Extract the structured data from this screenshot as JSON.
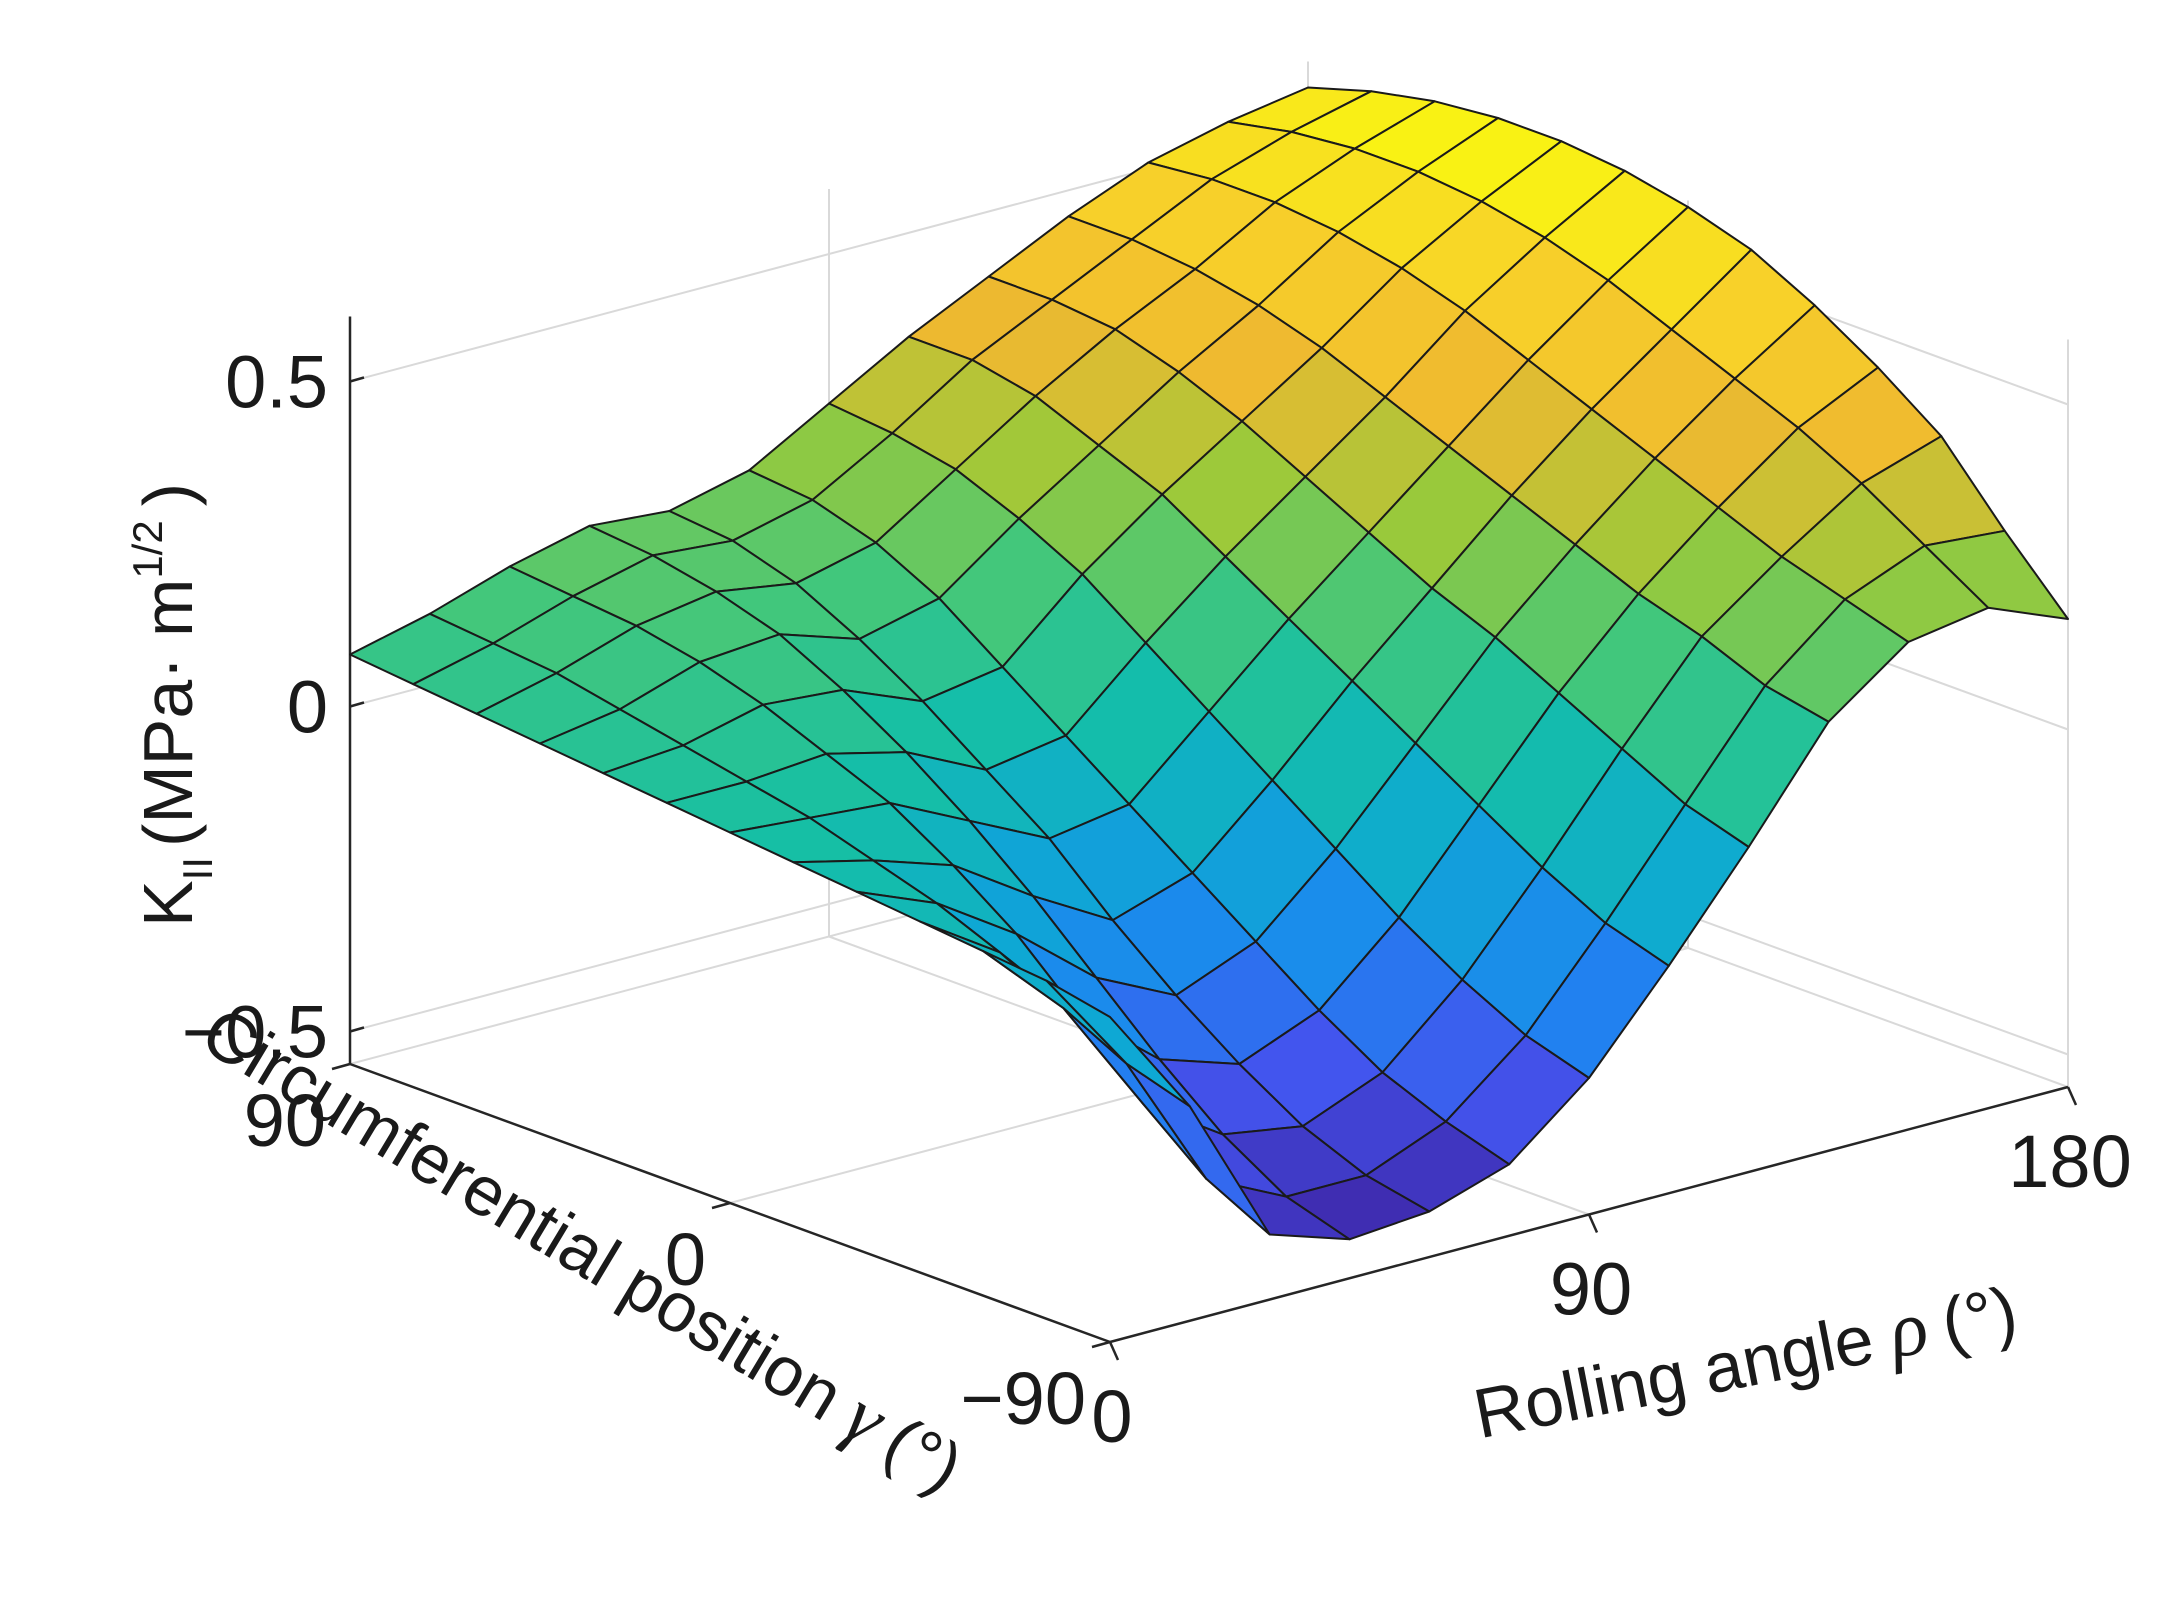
{
  "chart_data": {
    "type": "surface",
    "title": "",
    "xlabel": {
      "text": "Rolling angle",
      "symbol": "ρ",
      "unit": "(°)"
    },
    "ylabel": {
      "text": "Circumferential position",
      "symbol": "γ",
      "unit": "(°)"
    },
    "zlabel": {
      "base": "K",
      "subscript": "II",
      "units_open": "(MPa· m",
      "superscript": "1/2",
      "units_close": ")"
    },
    "x_ticks": [
      "0",
      "90",
      "180"
    ],
    "y_ticks": [
      "90",
      "0",
      "−90"
    ],
    "z_ticks": [
      "0.5",
      "0",
      "−0.5"
    ],
    "x_range": [
      0,
      180
    ],
    "y_range": [
      -90,
      90
    ],
    "z_range": [
      -0.55,
      0.6
    ],
    "colormap": [
      "#3e26a8",
      "#4354ee",
      "#1d86f0",
      "#0ea9d3",
      "#15bfa6",
      "#44c77a",
      "#9bc93a",
      "#efb930",
      "#f8d229",
      "#f9fb0e"
    ],
    "grid": true,
    "mesh": {
      "x": [
        0,
        15,
        30,
        45,
        60,
        75,
        90,
        105,
        120,
        135,
        150,
        165,
        180
      ],
      "y": [
        -90,
        -75,
        -60,
        -45,
        -30,
        -15,
        0,
        15,
        30,
        45,
        60,
        75,
        90
      ],
      "z": [
        [
          -0.05,
          -0.22,
          -0.45,
          -0.49,
          -0.48,
          -0.44,
          -0.34,
          -0.2,
          -0.05,
          0.11,
          0.2,
          0.22,
          0.17
        ],
        [
          -0.03,
          -0.19,
          -0.4,
          -0.46,
          -0.46,
          -0.41,
          -0.31,
          -0.17,
          -0.02,
          0.13,
          0.23,
          0.28,
          0.27
        ],
        [
          -0.02,
          -0.14,
          -0.32,
          -0.4,
          -0.42,
          -0.37,
          -0.26,
          -0.12,
          0.03,
          0.17,
          0.26,
          0.34,
          0.38
        ],
        [
          -0.01,
          -0.09,
          -0.22,
          -0.32,
          -0.36,
          -0.31,
          -0.2,
          -0.06,
          0.08,
          0.2,
          0.3,
          0.39,
          0.45
        ],
        [
          0.0,
          -0.05,
          -0.13,
          -0.23,
          -0.29,
          -0.24,
          -0.13,
          0.0,
          0.13,
          0.24,
          0.34,
          0.43,
          0.51
        ],
        [
          0.01,
          -0.02,
          -0.06,
          -0.14,
          -0.21,
          -0.17,
          -0.06,
          0.06,
          0.17,
          0.28,
          0.38,
          0.47,
          0.56
        ],
        [
          0.02,
          0.01,
          0.0,
          -0.06,
          -0.12,
          -0.1,
          0.01,
          0.12,
          0.22,
          0.32,
          0.42,
          0.51,
          0.59
        ],
        [
          0.03,
          0.03,
          0.04,
          0.01,
          -0.05,
          -0.03,
          0.08,
          0.18,
          0.27,
          0.36,
          0.46,
          0.54,
          0.61
        ],
        [
          0.04,
          0.05,
          0.08,
          0.07,
          0.02,
          0.04,
          0.15,
          0.24,
          0.32,
          0.4,
          0.49,
          0.56,
          0.62
        ],
        [
          0.05,
          0.07,
          0.11,
          0.12,
          0.08,
          0.11,
          0.2,
          0.28,
          0.36,
          0.43,
          0.51,
          0.57,
          0.62
        ],
        [
          0.06,
          0.09,
          0.13,
          0.15,
          0.13,
          0.16,
          0.24,
          0.32,
          0.39,
          0.45,
          0.52,
          0.57,
          0.61
        ],
        [
          0.07,
          0.1,
          0.14,
          0.17,
          0.16,
          0.19,
          0.26,
          0.34,
          0.4,
          0.46,
          0.52,
          0.56,
          0.59
        ],
        [
          0.08,
          0.11,
          0.15,
          0.18,
          0.17,
          0.2,
          0.27,
          0.34,
          0.4,
          0.46,
          0.51,
          0.54,
          0.56
        ]
      ]
    }
  }
}
